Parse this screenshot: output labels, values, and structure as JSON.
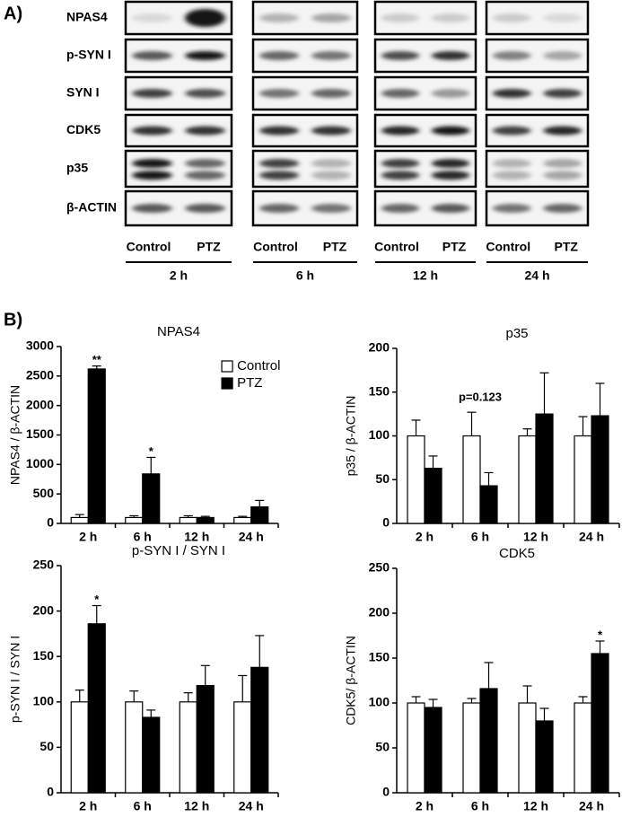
{
  "panel_a": {
    "label": "A)",
    "rows": [
      "NPAS4",
      "p-SYN I",
      "SYN I",
      "CDK5",
      "p35",
      "β-ACTIN"
    ],
    "lanes": [
      "Control",
      "PTZ"
    ],
    "times": [
      "2 h",
      "6 h",
      "12 h",
      "24 h"
    ]
  },
  "panel_b": {
    "label": "B)"
  },
  "chart_data": [
    {
      "type": "bar",
      "title": "NPAS4",
      "y_label": "NPAS4 / β-ACTIN",
      "categories": [
        "2 h",
        "6 h",
        "12 h",
        "24 h"
      ],
      "series": [
        {
          "name": "Control",
          "color": "#ffffff",
          "values": [
            100,
            100,
            100,
            100
          ],
          "errors": [
            50,
            30,
            30,
            20
          ]
        },
        {
          "name": "PTZ",
          "color": "#000000",
          "values": [
            2620,
            840,
            100,
            280
          ],
          "errors": [
            50,
            280,
            20,
            110
          ]
        }
      ],
      "annotations": [
        "**",
        "*",
        null,
        null
      ],
      "ylim": [
        0,
        3000
      ],
      "yticks": [
        0,
        500,
        1000,
        1500,
        2000,
        2500,
        3000
      ],
      "legend": "top-right"
    },
    {
      "type": "bar",
      "title": "p35",
      "y_label": "p35 / β-ACTIN",
      "categories": [
        "2 h",
        "6 h",
        "12 h",
        "24 h"
      ],
      "series": [
        {
          "name": "Control",
          "color": "#ffffff",
          "values": [
            100,
            100,
            100,
            100
          ],
          "errors": [
            18,
            27,
            8,
            22
          ]
        },
        {
          "name": "PTZ",
          "color": "#000000",
          "values": [
            63,
            43,
            125,
            123
          ],
          "errors": [
            14,
            15,
            47,
            37
          ]
        }
      ],
      "annotations": [
        null,
        "p=0.123",
        null,
        null
      ],
      "ylim": [
        0,
        200
      ],
      "yticks": [
        0,
        50,
        100,
        150,
        200
      ]
    },
    {
      "type": "bar",
      "title": "p-SYN I / SYN I",
      "y_label": "p-SYN I / SYN I",
      "categories": [
        "2 h",
        "6 h",
        "12 h",
        "24 h"
      ],
      "series": [
        {
          "name": "Control",
          "color": "#ffffff",
          "values": [
            100,
            100,
            100,
            100
          ],
          "errors": [
            13,
            12,
            10,
            29
          ]
        },
        {
          "name": "PTZ",
          "color": "#000000",
          "values": [
            186,
            83,
            118,
            138
          ],
          "errors": [
            20,
            8,
            22,
            35
          ]
        }
      ],
      "annotations": [
        "*",
        null,
        null,
        null
      ],
      "ylim": [
        0,
        250
      ],
      "yticks": [
        0,
        50,
        100,
        150,
        200,
        250
      ]
    },
    {
      "type": "bar",
      "title": "CDK5",
      "y_label": "CDK5/ β-ACTIN",
      "categories": [
        "2 h",
        "6 h",
        "12 h",
        "24 h"
      ],
      "series": [
        {
          "name": "Control",
          "color": "#ffffff",
          "values": [
            100,
            100,
            100,
            100
          ],
          "errors": [
            7,
            5,
            19,
            7
          ]
        },
        {
          "name": "PTZ",
          "color": "#000000",
          "values": [
            95,
            116,
            80,
            155
          ],
          "errors": [
            9,
            29,
            14,
            14
          ]
        }
      ],
      "annotations": [
        null,
        null,
        null,
        "*"
      ],
      "ylim": [
        0,
        250
      ],
      "yticks": [
        0,
        50,
        100,
        150,
        200,
        250
      ]
    }
  ]
}
